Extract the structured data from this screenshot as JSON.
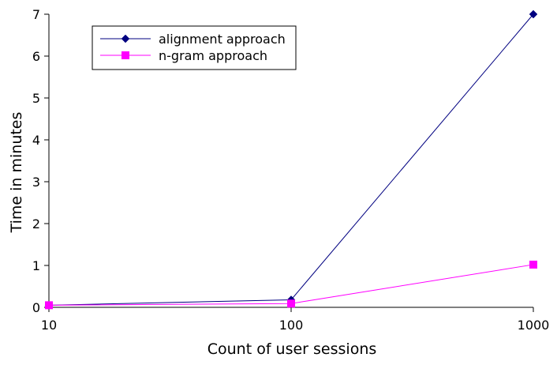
{
  "chart_data": {
    "type": "line",
    "title": "",
    "xlabel": "Count of user sessions",
    "ylabel": "Time in minutes",
    "x_scale": "log",
    "x": [
      10,
      100,
      1000
    ],
    "x_tick_labels": [
      "10",
      "100",
      "1000"
    ],
    "ylim": [
      0,
      7
    ],
    "y_tick_labels": [
      "0",
      "1",
      "2",
      "3",
      "4",
      "5",
      "6",
      "7"
    ],
    "grid": false,
    "legend_position": "top-left",
    "series": [
      {
        "name": "alignment approach",
        "values": [
          0.05,
          0.18,
          7.0
        ],
        "color": "#000080",
        "marker": "diamond"
      },
      {
        "name": "n-gram approach",
        "values": [
          0.05,
          0.09,
          1.02
        ],
        "color": "#ff00ff",
        "marker": "square"
      }
    ]
  }
}
